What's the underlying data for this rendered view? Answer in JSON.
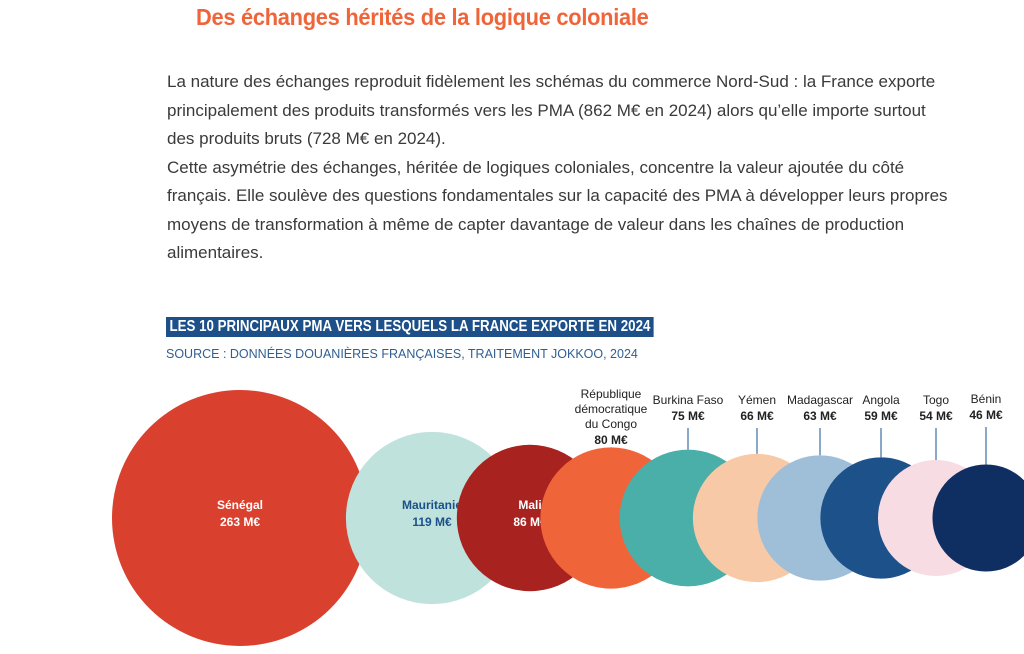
{
  "heading": "Des échanges hérités de la logique coloniale",
  "paragraphs": [
    "La nature des échanges reproduit fidèlement les schémas du commerce Nord-Sud : la France exporte principalement des produits transformés vers les PMA (862 M€ en 2024) alors qu’elle importe surtout des produits bruts (728 M€ en 2024).",
    "Cette asymétrie des échanges, héritée de logiques coloniales, concentre la valeur ajoutée du côté français. Elle soulève des questions fondamentales sur la capacité des PMA à développer leurs propres moyens de transformation à même de capter davantage de valeur dans les chaînes de production alimentaires."
  ],
  "chart_data": {
    "type": "bubble",
    "title": "LES 10 PRINCIPAUX PMA VERS LESQUELS LA FRANCE EXPORTE EN 2024",
    "source": "SOURCE : DONNÉES DOUANIÈRES FRANÇAISES, TRAITEMENT JOKKOO, 2024",
    "unit": "M€",
    "items": [
      {
        "name": "Sénégal",
        "value": 263,
        "label": "263 M€",
        "color": "#d9402e",
        "text_color": "#ffffff",
        "label_inside": true
      },
      {
        "name": "Mauritanie",
        "value": 119,
        "label": "119 M€",
        "color": "#bfe2dc",
        "text_color": "#1d4f88",
        "label_inside": true
      },
      {
        "name": "Mali",
        "value": 86,
        "label": "86 M€",
        "color": "#a8231f",
        "text_color": "#ffffff",
        "label_inside": true
      },
      {
        "name": "République démocratique du Congo",
        "value": 80,
        "label": "80 M€",
        "color": "#f0643a",
        "label_inside": false
      },
      {
        "name": "Burkina Faso",
        "value": 75,
        "label": "75 M€",
        "color": "#4aafa8",
        "label_inside": false
      },
      {
        "name": "Yémen",
        "value": 66,
        "label": "66 M€",
        "color": "#f8c9a6",
        "label_inside": false
      },
      {
        "name": "Madagascar",
        "value": 63,
        "label": "63 M€",
        "color": "#9fbfd9",
        "label_inside": false
      },
      {
        "name": "Angola",
        "value": 59,
        "label": "59 M€",
        "color": "#1d5189",
        "label_inside": false
      },
      {
        "name": "Togo",
        "value": 54,
        "label": "54 M€",
        "color": "#f8dce4",
        "label_inside": false
      },
      {
        "name": "Bénin",
        "value": 46,
        "label": "46 M€",
        "color": "#0f2f63",
        "label_inside": false
      }
    ]
  }
}
